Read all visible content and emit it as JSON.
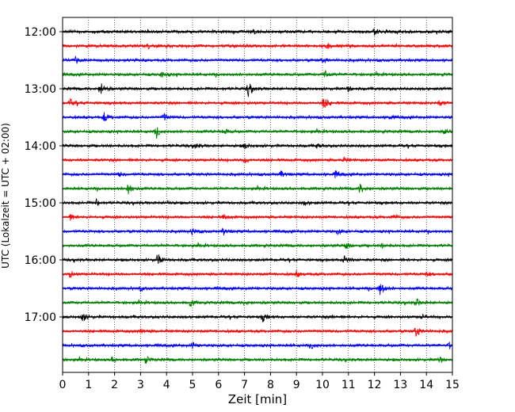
{
  "chart_data": {
    "type": "line",
    "title": "",
    "xlabel": "Zeit  [min]",
    "ylabel": "UTC (Lokalzeit = UTC + 02:00)",
    "xlim": [
      0,
      15
    ],
    "x_ticks": [
      0,
      1,
      2,
      3,
      4,
      5,
      6,
      7,
      8,
      9,
      10,
      11,
      12,
      13,
      14,
      15
    ],
    "x_tick_labels": [
      "0",
      "1",
      "2",
      "3",
      "4",
      "5",
      "6",
      "7",
      "8",
      "9",
      "10",
      "11",
      "12",
      "13",
      "14",
      "15"
    ],
    "y_tick_labels": [
      "12:00",
      "13:00",
      "14:00",
      "15:00",
      "16:00",
      "17:00"
    ],
    "grid": "vertical-dotted",
    "trace_interval_minutes": 15,
    "color_cycle": [
      "#000000",
      "#ff0000",
      "#0000ff",
      "#008000"
    ],
    "traces": [
      {
        "start": "12:00",
        "events": [
          [
            7.3,
            0.4
          ],
          [
            12.0,
            0.5
          ]
        ]
      },
      {
        "start": "12:15",
        "events": [
          [
            3.3,
            0.3
          ],
          [
            10.2,
            0.3
          ]
        ]
      },
      {
        "start": "12:30",
        "events": [
          [
            0.5,
            0.4
          ],
          [
            10.0,
            0.3
          ]
        ]
      },
      {
        "start": "12:45",
        "events": [
          [
            3.8,
            0.5
          ],
          [
            10.1,
            0.8
          ]
        ]
      },
      {
        "start": "13:00",
        "events": [
          [
            1.45,
            1.0
          ],
          [
            7.15,
            1.1
          ],
          [
            11.0,
            0.4
          ]
        ]
      },
      {
        "start": "13:15",
        "events": [
          [
            0.3,
            0.5
          ],
          [
            10.05,
            1.0
          ],
          [
            14.5,
            0.4
          ]
        ]
      },
      {
        "start": "13:30",
        "events": [
          [
            1.6,
            0.7
          ],
          [
            3.9,
            0.6
          ],
          [
            12.6,
            0.3
          ]
        ]
      },
      {
        "start": "13:45",
        "events": [
          [
            3.6,
            0.8
          ],
          [
            6.2,
            0.5
          ],
          [
            14.7,
            0.4
          ]
        ]
      },
      {
        "start": "14:00",
        "events": [
          [
            5.1,
            0.4
          ],
          [
            7.0,
            0.4
          ],
          [
            9.8,
            0.3
          ]
        ]
      },
      {
        "start": "14:15",
        "events": [
          [
            7.0,
            0.5
          ],
          [
            10.8,
            0.3
          ]
        ]
      },
      {
        "start": "14:30",
        "events": [
          [
            2.2,
            0.3
          ],
          [
            8.4,
            0.4
          ],
          [
            10.5,
            0.5
          ]
        ]
      },
      {
        "start": "14:45",
        "events": [
          [
            2.5,
            1.0
          ],
          [
            11.45,
            0.8
          ]
        ]
      },
      {
        "start": "15:00",
        "events": [
          [
            1.3,
            0.5
          ],
          [
            4.0,
            0.3
          ],
          [
            9.3,
            0.3
          ]
        ]
      },
      {
        "start": "15:15",
        "events": [
          [
            0.3,
            0.4
          ],
          [
            6.2,
            0.3
          ],
          [
            12.7,
            0.3
          ]
        ]
      },
      {
        "start": "15:30",
        "events": [
          [
            5.0,
            0.5
          ],
          [
            6.2,
            0.5
          ],
          [
            10.6,
            0.4
          ]
        ]
      },
      {
        "start": "15:45",
        "events": [
          [
            10.9,
            0.6
          ],
          [
            12.3,
            0.3
          ]
        ]
      },
      {
        "start": "16:00",
        "events": [
          [
            3.65,
            0.9
          ],
          [
            10.85,
            0.7
          ]
        ]
      },
      {
        "start": "16:15",
        "events": [
          [
            0.3,
            0.5
          ],
          [
            9.0,
            0.4
          ],
          [
            14.0,
            0.3
          ]
        ]
      },
      {
        "start": "16:30",
        "events": [
          [
            3.0,
            0.3
          ],
          [
            12.2,
            1.2
          ]
        ]
      },
      {
        "start": "16:45",
        "events": [
          [
            4.9,
            0.6
          ],
          [
            7.0,
            0.4
          ],
          [
            13.6,
            0.6
          ]
        ]
      },
      {
        "start": "17:00",
        "events": [
          [
            0.75,
            0.8
          ],
          [
            7.7,
            0.6
          ],
          [
            10.4,
            0.3
          ],
          [
            13.8,
            0.3
          ]
        ]
      },
      {
        "start": "17:15",
        "events": [
          [
            3.0,
            0.3
          ],
          [
            13.6,
            0.9
          ]
        ]
      },
      {
        "start": "17:30",
        "events": [
          [
            5.0,
            0.4
          ],
          [
            9.6,
            0.4
          ],
          [
            14.9,
            0.5
          ]
        ]
      },
      {
        "start": "17:45",
        "events": [
          [
            1.9,
            0.4
          ],
          [
            3.2,
            0.5
          ],
          [
            14.5,
            0.5
          ]
        ]
      }
    ]
  }
}
